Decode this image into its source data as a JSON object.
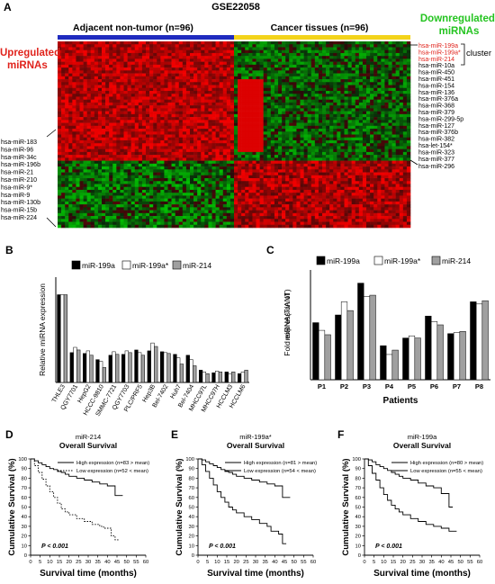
{
  "panels": {
    "A": "A",
    "B": "B",
    "C": "C",
    "D": "D",
    "E": "E",
    "F": "F"
  },
  "heatmap": {
    "title": "GSE22058",
    "group_left": "Adjacent non-tumor (n=96)",
    "group_right": "Cancer tissues (n=96)",
    "up_label": [
      "Upregulated",
      "miRNAs"
    ],
    "down_label": [
      "Downregulated",
      "miRNAs"
    ],
    "cluster_label": "cluster",
    "right_mirnas_red": [
      "hsa-miR-199a",
      "hsa-miR-199a*",
      "hsa-miR-214"
    ],
    "right_mirnas": [
      "hsa-miR-10a",
      "hsa-miR-450",
      "hsa-miR-451",
      "hsa-miR-154",
      "hsa-miR-136",
      "hsa-miR-376a",
      "hsa-miR-368",
      "hsa-miR-379",
      "hsa-miR-299-5p",
      "hsa-miR-127",
      "hsa-miR-376b",
      "hsa-miR-382",
      "hsa-let-154*",
      "hsa-miR-323",
      "hsa-miR-377",
      "hsa-miR-296"
    ],
    "left_mirnas": [
      "hsa-miR-183",
      "hsa-miR-96",
      "hsa-miR-34c",
      "hsa-miR-196b",
      "hsa-miR-21",
      "hsa-miR-210",
      "hsa-miR-9*",
      "hsa-miR-9",
      "hsa-miR-130b",
      "hsa-miR-15b",
      "hsa-miR-224"
    ],
    "colors": {
      "up": "#e0231c",
      "down": "#25c421",
      "bar_left": "#1f2bbf",
      "bar_right": "#f3d31a"
    }
  },
  "chart_data": [
    {
      "type": "bar",
      "panel": "B",
      "ylabel": "Relative miRNA expression",
      "ylim": [
        0,
        1.2
      ],
      "yticks": [],
      "categories": [
        "THLE3",
        "QGY7701",
        "HepG2",
        "HCCC-9810",
        "SMMC-7721",
        "QGY7703",
        "PLC/PRF5",
        "Hep3B",
        "Bel-7402",
        "Huh7",
        "Bel-7404",
        "MHCC97L",
        "MHCC97H",
        "HCCLM3",
        "HCCLM6"
      ],
      "series": [
        {
          "name": "miR-199a",
          "color": "#000000",
          "values": [
            1.0,
            0.34,
            0.33,
            0.26,
            0.31,
            0.32,
            0.37,
            0.36,
            0.35,
            0.32,
            0.31,
            0.14,
            0.11,
            0.12,
            0.1
          ]
        },
        {
          "name": "miR-199a*",
          "color": "#ffffff",
          "values": [
            1.0,
            0.4,
            0.36,
            0.24,
            0.35,
            0.36,
            0.34,
            0.45,
            0.34,
            0.28,
            0.26,
            0.12,
            0.13,
            0.1,
            0.12
          ]
        },
        {
          "name": "miR-214",
          "color": "#a0a0a0",
          "values": [
            1.0,
            0.37,
            0.31,
            0.17,
            0.32,
            0.34,
            0.31,
            0.41,
            0.33,
            0.21,
            0.19,
            0.1,
            0.12,
            0.12,
            0.14
          ]
        }
      ]
    },
    {
      "type": "bar",
      "panel": "C",
      "ylabel": "Fold expression of miRNA(T/ANT)",
      "xlabel": "Patients",
      "ylim": [
        0,
        1
      ],
      "yticks": [],
      "categories": [
        "P1",
        "P2",
        "P3",
        "P4",
        "P5",
        "P6",
        "P7",
        "P8"
      ],
      "series": [
        {
          "name": "miR-199a",
          "color": "#000000",
          "values": [
            0.52,
            0.59,
            0.88,
            0.31,
            0.38,
            0.58,
            0.42,
            0.71
          ]
        },
        {
          "name": "miR-199a*",
          "color": "#ffffff",
          "values": [
            0.45,
            0.71,
            0.76,
            0.23,
            0.4,
            0.53,
            0.43,
            0.69
          ]
        },
        {
          "name": "miR-214",
          "color": "#a0a0a0",
          "values": [
            0.41,
            0.63,
            0.77,
            0.27,
            0.38,
            0.5,
            0.44,
            0.72
          ]
        }
      ]
    },
    {
      "type": "line",
      "panel": "D",
      "title": "miR-214",
      "subtitle": "Overall Survival",
      "xlabel": "Survival time (months)",
      "ylabel": "Cumulative Survival (%)",
      "xlim": [
        0,
        60
      ],
      "ylim": [
        0,
        100
      ],
      "xticks": [
        0,
        5,
        10,
        15,
        20,
        25,
        30,
        35,
        40,
        45,
        50,
        55,
        60
      ],
      "yticks": [
        0,
        10,
        20,
        30,
        40,
        50,
        60,
        70,
        80,
        90,
        100
      ],
      "annotation": "P < 0.001",
      "series": [
        {
          "name": "High expression (n=83 > mean)",
          "style": "solid",
          "x": [
            0,
            2,
            4,
            6,
            8,
            10,
            12,
            14,
            16,
            18,
            20,
            24,
            28,
            32,
            36,
            40,
            44,
            48
          ],
          "y": [
            100,
            98,
            96,
            94,
            92,
            90,
            89,
            87,
            86,
            84,
            82,
            80,
            78,
            76,
            74,
            72,
            62,
            62
          ]
        },
        {
          "name": "Low expression (n=52 < mean)",
          "style": "dotted",
          "x": [
            0,
            2,
            4,
            6,
            8,
            10,
            12,
            14,
            16,
            18,
            20,
            24,
            28,
            32,
            36,
            38,
            40,
            42,
            44,
            46
          ],
          "y": [
            100,
            93,
            86,
            79,
            72,
            66,
            60,
            54,
            48,
            45,
            42,
            38,
            35,
            32,
            30,
            28,
            28,
            20,
            16,
            16
          ]
        }
      ]
    },
    {
      "type": "line",
      "panel": "E",
      "title": "miR-199a*",
      "subtitle": "Overall Survival",
      "xlabel": "Survival time (months)",
      "ylabel": "Cumulative Survival (%)",
      "xlim": [
        0,
        60
      ],
      "ylim": [
        0,
        100
      ],
      "xticks": [
        0,
        5,
        10,
        15,
        20,
        25,
        30,
        35,
        40,
        45,
        50,
        55,
        60
      ],
      "yticks": [
        0,
        10,
        20,
        30,
        40,
        50,
        60,
        70,
        80,
        90,
        100
      ],
      "annotation": "P < 0.001",
      "series": [
        {
          "name": "High expression (n=81 > mean)",
          "style": "solid",
          "x": [
            0,
            2,
            4,
            6,
            8,
            10,
            12,
            14,
            16,
            18,
            20,
            24,
            28,
            32,
            36,
            40,
            44,
            48
          ],
          "y": [
            100,
            99,
            97,
            95,
            93,
            91,
            89,
            87,
            86,
            84,
            82,
            80,
            78,
            76,
            74,
            72,
            60,
            60
          ]
        },
        {
          "name": "Low expression (n=54 < mean)",
          "style": "solid",
          "x": [
            0,
            2,
            4,
            6,
            8,
            10,
            12,
            14,
            16,
            18,
            20,
            24,
            28,
            32,
            36,
            38,
            42,
            44,
            46
          ],
          "y": [
            100,
            94,
            87,
            80,
            73,
            66,
            60,
            55,
            50,
            47,
            44,
            40,
            37,
            33,
            30,
            25,
            22,
            12,
            12
          ]
        }
      ]
    },
    {
      "type": "line",
      "panel": "F",
      "title": "miR-199a",
      "subtitle": "Overall Survival",
      "xlabel": "Survival time (months)",
      "ylabel": "Cumulative Survival (%)",
      "xlim": [
        0,
        60
      ],
      "ylim": [
        0,
        100
      ],
      "xticks": [
        0,
        5,
        10,
        15,
        20,
        25,
        30,
        35,
        40,
        45,
        50,
        55,
        60
      ],
      "yticks": [
        0,
        10,
        20,
        30,
        40,
        50,
        60,
        70,
        80,
        90,
        100
      ],
      "annotation": "P < 0.001",
      "series": [
        {
          "name": "High expression (n=80 > mean)",
          "style": "solid",
          "x": [
            0,
            2,
            4,
            6,
            8,
            10,
            12,
            14,
            16,
            18,
            20,
            24,
            28,
            32,
            36,
            40,
            44,
            46
          ],
          "y": [
            100,
            99,
            97,
            94,
            92,
            90,
            88,
            86,
            84,
            82,
            80,
            78,
            75,
            72,
            70,
            64,
            50,
            50
          ]
        },
        {
          "name": "Low expression (n=55 < mean)",
          "style": "solid",
          "x": [
            0,
            2,
            4,
            6,
            8,
            10,
            12,
            14,
            16,
            18,
            20,
            24,
            28,
            32,
            36,
            40,
            44,
            48
          ],
          "y": [
            100,
            93,
            85,
            78,
            70,
            63,
            57,
            52,
            48,
            45,
            42,
            38,
            35,
            32,
            30,
            28,
            25,
            25
          ]
        }
      ]
    }
  ]
}
